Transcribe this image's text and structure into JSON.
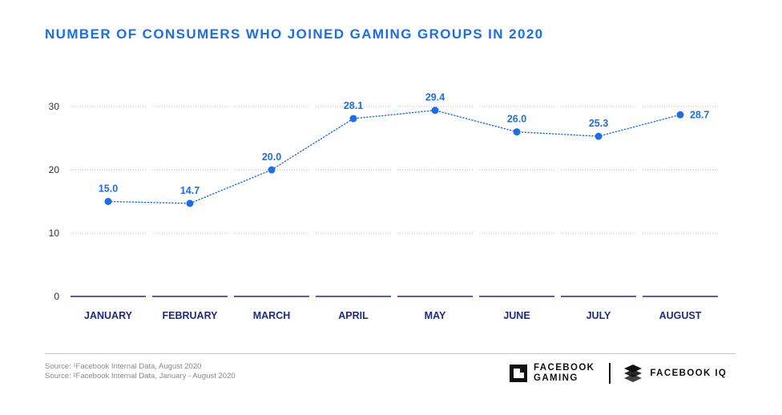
{
  "chart_data": {
    "type": "line",
    "title": "NUMBER OF CONSUMERS WHO JOINED GAMING GROUPS IN 2020",
    "categories": [
      "JANUARY",
      "FEBRUARY",
      "MARCH",
      "APRIL",
      "MAY",
      "JUNE",
      "JULY",
      "AUGUST"
    ],
    "series": [
      {
        "values": [
          15.0,
          14.7,
          20.0,
          28.1,
          29.4,
          26.0,
          25.3,
          28.7
        ]
      }
    ],
    "data_labels": [
      "15.0",
      "14.7",
      "20.0",
      "28.1",
      "29.4",
      "26.0",
      "25.3",
      "28.7"
    ],
    "yticks": [
      "0",
      "10",
      "20",
      "30"
    ],
    "ylim": [
      0,
      30
    ],
    "grid": true,
    "line_style": "dotted",
    "colors": {
      "line": "#1a6fe8",
      "label": "#1a6fe8",
      "baseline": "#1c2a8a",
      "category": "#1c2a8a",
      "title": "#1a6fe8"
    }
  },
  "footer": {
    "sources": [
      "Source: ¹Facebook Internal Data, August 2020",
      "Source: ²Facebook Internal Data, January - August 2020"
    ],
    "logos": {
      "gaming_line1": "FACEBOOK",
      "gaming_line2": "GAMING",
      "iq": "FACEBOOK IQ"
    }
  }
}
